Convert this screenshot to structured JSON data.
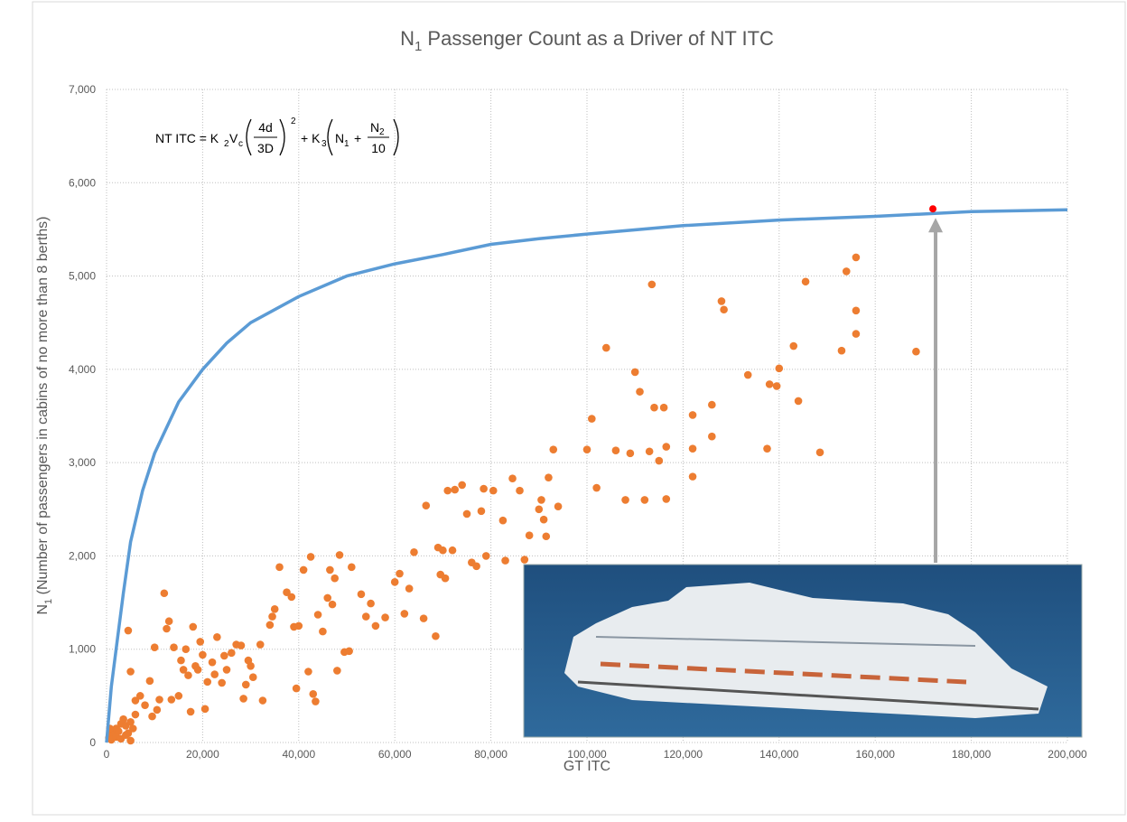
{
  "chart_data": {
    "type": "scatter",
    "title": {
      "main": "N",
      "sub": "1",
      "rest": " Passenger Count as a Driver of NT ITC"
    },
    "x_label": "GT ITC",
    "y_label": {
      "main": "N",
      "sub": "1",
      "rest": " (Number of passengers in cabins of no more than 8 berths)"
    },
    "formula": [
      "NT ITC = K",
      "2",
      "V",
      "c",
      "4d",
      "3D",
      "2",
      "+ K",
      "3",
      "N",
      "1",
      "+",
      "N",
      "2",
      "10"
    ],
    "xlim": [
      0,
      200000
    ],
    "ylim": [
      0,
      7000
    ],
    "grid": true,
    "xticks": [
      0,
      {
        "value": 20000,
        "label": "20,000"
      },
      {
        "value": 40000,
        "label": "40,000"
      },
      {
        "value": 60000,
        "label": "60,000"
      },
      {
        "value": 80000,
        "label": "80,000"
      },
      {
        "value": 100000,
        "label": "100,000"
      },
      {
        "value": 120000,
        "label": "120,000"
      },
      {
        "value": 140000,
        "label": "140,000"
      },
      {
        "value": 160000,
        "label": "160,000"
      },
      {
        "value": 180000,
        "label": "180,000"
      },
      {
        "value": 200000,
        "label": "200,000"
      }
    ],
    "yticks": [
      0,
      {
        "value": 1000,
        "label": "1,000"
      },
      {
        "value": 2000,
        "label": "2,000"
      },
      {
        "value": 3000,
        "label": "3,000"
      },
      {
        "value": 4000,
        "label": "4,000"
      },
      {
        "value": 5000,
        "label": "5,000"
      },
      {
        "value": 6000,
        "label": "6,000"
      },
      {
        "value": 7000,
        "label": "7,000"
      }
    ],
    "series": [
      {
        "type": "scatter",
        "color": "#ed7d31",
        "x": [
          500,
          1000,
          1500,
          2000,
          2500,
          3000,
          3500,
          4000,
          4500,
          5000,
          5500,
          6000,
          1000,
          2000,
          3000,
          4000,
          5000,
          700,
          4500,
          5000,
          6000,
          7000,
          8000,
          9000,
          9500,
          10000,
          10500,
          11000,
          12000,
          12500,
          13000,
          13500,
          14000,
          15000,
          15500,
          16000,
          16500,
          17000,
          17500,
          18000,
          18500,
          19000,
          19500,
          20000,
          20500,
          21000,
          22000,
          22500,
          23000,
          24000,
          24500,
          25000,
          26000,
          27000,
          28000,
          28500,
          29000,
          29500,
          30000,
          30500,
          32000,
          32500,
          34000,
          34500,
          35000,
          36000,
          37500,
          38500,
          39000,
          39500,
          40000,
          41000,
          42000,
          42500,
          43000,
          43500,
          44000,
          45000,
          46000,
          46500,
          47000,
          47500,
          48000,
          48500,
          49500,
          50500,
          51000,
          53000,
          54000,
          55000,
          56000,
          58000,
          60000,
          61000,
          62000,
          63000,
          64000,
          66000,
          66500,
          68500,
          69000,
          69500,
          70000,
          70500,
          71000,
          72000,
          72500,
          74000,
          75000,
          76000,
          77000,
          78000,
          78500,
          79000,
          80500,
          82500,
          83000,
          84500,
          86000,
          87000,
          88000,
          90000,
          90500,
          91000,
          91500,
          92000,
          93000,
          94000,
          100000,
          101000,
          102000,
          104000,
          106000,
          108000,
          109000,
          110000,
          111000,
          112000,
          113000,
          113500,
          114000,
          115000,
          116000,
          116500,
          116500,
          122000,
          122000,
          122000,
          126000,
          126000,
          128000,
          128500,
          133500,
          137500,
          138000,
          139500,
          140000,
          143000,
          144000,
          145500,
          148500,
          153000,
          154000,
          156000,
          156000,
          156000,
          168500
        ],
        "values": [
          50,
          100,
          80,
          150,
          120,
          200,
          250,
          180,
          100,
          220,
          150,
          300,
          30,
          60,
          40,
          80,
          20,
          150,
          1200,
          760,
          450,
          500,
          400,
          660,
          280,
          1020,
          350,
          460,
          1600,
          1220,
          1300,
          460,
          1020,
          500,
          880,
          780,
          1000,
          720,
          330,
          1240,
          820,
          780,
          1080,
          940,
          360,
          650,
          860,
          730,
          1130,
          640,
          930,
          780,
          960,
          1050,
          1040,
          470,
          620,
          880,
          820,
          700,
          1050,
          450,
          1260,
          1350,
          1430,
          1880,
          1610,
          1560,
          1240,
          580,
          1250,
          1850,
          760,
          1990,
          520,
          440,
          1370,
          1190,
          1550,
          1850,
          1480,
          1760,
          770,
          2010,
          970,
          980,
          1880,
          1590,
          1350,
          1490,
          1250,
          1340,
          1720,
          1810,
          1380,
          1650,
          2040,
          1330,
          2540,
          1140,
          2090,
          1800,
          2060,
          1760,
          2700,
          2060,
          2710,
          2760,
          2450,
          1930,
          1890,
          2480,
          2720,
          2000,
          2700,
          2380,
          1950,
          2830,
          2700,
          1960,
          2220,
          2500,
          2600,
          2390,
          2210,
          2840,
          3140,
          2530,
          3140,
          3470,
          2730,
          4230,
          3130,
          2600,
          3100,
          3970,
          3760,
          2600,
          3120,
          4910,
          3590,
          3020,
          3590,
          3170,
          2610,
          3510,
          3150,
          2850,
          3620,
          3280,
          4730,
          4640,
          3940,
          3150,
          3840,
          3820,
          4010,
          4250,
          3660,
          4940,
          3110,
          4200,
          5050,
          5200,
          4630,
          4380,
          4190
        ]
      },
      {
        "type": "line",
        "color": "#5b9bd5",
        "x": [
          0,
          1000,
          2000,
          3500,
          5000,
          7500,
          10000,
          15000,
          20000,
          25000,
          30000,
          40000,
          50000,
          60000,
          70000,
          80000,
          90000,
          100000,
          120000,
          140000,
          160000,
          180000,
          200000
        ],
        "values": [
          0,
          600,
          1000,
          1600,
          2150,
          2700,
          3100,
          3650,
          4000,
          4280,
          4500,
          4780,
          5000,
          5130,
          5230,
          5340,
          5400,
          5450,
          5540,
          5600,
          5640,
          5690,
          5710
        ]
      },
      {
        "type": "point",
        "color": "#ff0000",
        "x": [
          172000
        ],
        "values": [
          5720
        ]
      }
    ]
  }
}
